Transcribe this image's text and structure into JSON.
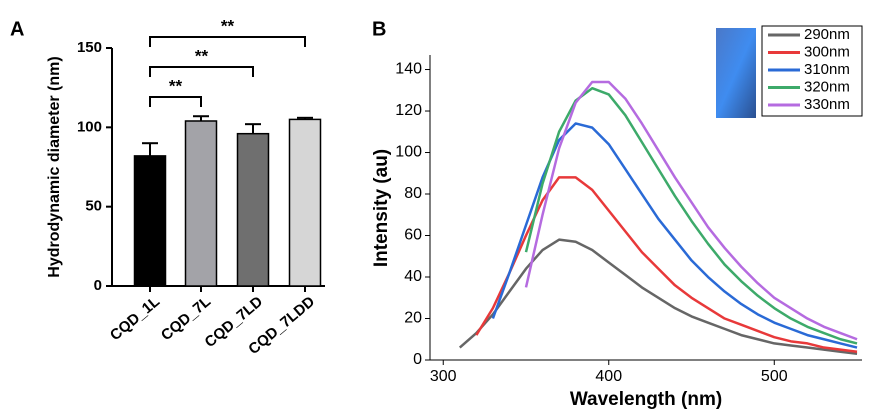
{
  "chart_data": [
    {
      "type": "bar",
      "panel": "A",
      "ylabel": "Hydrodynamic diameter (nm)",
      "categories": [
        "CQD_1L",
        "CQD_7L",
        "CQD_7LD",
        "CQD_7LDD"
      ],
      "values": [
        82,
        104,
        96,
        105
      ],
      "errors": [
        8,
        3,
        6,
        1
      ],
      "colors": [
        "#000000",
        "#a3a3a8",
        "#6f6f6f",
        "#d6d6d6"
      ],
      "annotations": [
        "**",
        "**",
        "**"
      ],
      "ylim": [
        0,
        150
      ],
      "yticks": [
        0,
        50,
        100,
        150
      ]
    },
    {
      "type": "line",
      "panel": "B",
      "xlabel": "Wavelength (nm)",
      "ylabel": "Intensity (au)",
      "x": [
        300,
        310,
        320,
        330,
        340,
        350,
        360,
        370,
        380,
        390,
        400,
        410,
        420,
        430,
        440,
        450,
        460,
        470,
        480,
        490,
        500,
        510,
        520,
        530,
        540,
        550
      ],
      "series": [
        {
          "name": "290nm",
          "color": "#666666",
          "values": [
            null,
            6,
            13,
            22,
            33,
            44,
            53,
            58,
            57,
            53,
            47,
            41,
            35,
            30,
            25,
            21,
            18,
            15,
            12,
            10,
            8,
            7,
            6,
            5,
            4,
            3
          ]
        },
        {
          "name": "300nm",
          "color": "#e8393a",
          "values": [
            null,
            null,
            12,
            25,
            42,
            60,
            77,
            88,
            88,
            82,
            72,
            62,
            52,
            44,
            36,
            30,
            25,
            20,
            17,
            14,
            11,
            9,
            8,
            6,
            5,
            4
          ]
        },
        {
          "name": "310nm",
          "color": "#2a6ad6",
          "values": [
            null,
            null,
            null,
            20,
            42,
            65,
            88,
            106,
            114,
            112,
            104,
            92,
            80,
            68,
            58,
            48,
            40,
            33,
            27,
            22,
            18,
            15,
            12,
            10,
            8,
            6
          ]
        },
        {
          "name": "320nm",
          "color": "#3daa6a",
          "values": [
            null,
            null,
            null,
            null,
            null,
            52,
            85,
            110,
            125,
            131,
            128,
            118,
            105,
            92,
            79,
            67,
            56,
            46,
            38,
            31,
            25,
            20,
            16,
            13,
            10,
            8
          ]
        },
        {
          "name": "330nm",
          "color": "#b56be0",
          "values": [
            null,
            null,
            null,
            null,
            null,
            35,
            70,
            102,
            124,
            134,
            134,
            126,
            114,
            101,
            88,
            76,
            64,
            54,
            45,
            37,
            30,
            25,
            20,
            16,
            13,
            10
          ]
        }
      ],
      "xlim": [
        292,
        553
      ],
      "xticks": [
        300,
        400,
        500
      ],
      "ylim": [
        0,
        147
      ],
      "yticks": [
        0,
        20,
        40,
        60,
        80,
        100,
        120,
        140
      ]
    }
  ]
}
